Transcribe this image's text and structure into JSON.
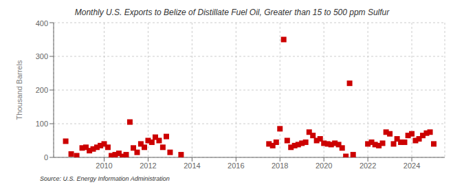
{
  "chart_data": {
    "type": "scatter",
    "title": "Monthly U.S. Exports to Belize of Distillate Fuel Oil, Greater than 15 to 500 ppm Sulfur",
    "ylabel": "Thousand Barrels",
    "annotation": "Source: U.S. Energy Information Administration",
    "color": "#cc0000",
    "marker": "square",
    "grid": true,
    "xlim": [
      2007.7,
      2025.5
    ],
    "ylim": [
      0,
      400
    ],
    "xticks": [
      2010,
      2012,
      2014,
      2016,
      2018,
      2020,
      2022,
      2024
    ],
    "yticks": [
      0,
      100,
      200,
      300,
      400
    ],
    "x": [
      2008.25,
      2008.5,
      2008.75,
      2009.0,
      2009.17,
      2009.33,
      2009.5,
      2009.67,
      2009.83,
      2010.0,
      2010.17,
      2010.33,
      2010.5,
      2010.67,
      2010.83,
      2011.0,
      2011.17,
      2011.33,
      2011.5,
      2011.67,
      2011.83,
      2012.0,
      2012.17,
      2012.33,
      2012.5,
      2012.67,
      2012.83,
      2013.0,
      2013.5,
      2017.5,
      2017.67,
      2017.83,
      2018.0,
      2018.17,
      2018.33,
      2018.5,
      2018.67,
      2018.83,
      2019.0,
      2019.17,
      2019.33,
      2019.5,
      2019.67,
      2019.83,
      2020.0,
      2020.17,
      2020.33,
      2020.5,
      2020.67,
      2020.83,
      2021.0,
      2021.17,
      2021.33,
      2022.0,
      2022.17,
      2022.33,
      2022.5,
      2022.67,
      2022.83,
      2023.0,
      2023.17,
      2023.33,
      2023.5,
      2023.67,
      2023.83,
      2024.0,
      2024.17,
      2024.33,
      2024.5,
      2024.67,
      2024.83,
      2025.0
    ],
    "values": [
      48,
      10,
      5,
      28,
      30,
      20,
      25,
      30,
      35,
      40,
      30,
      5,
      8,
      12,
      3,
      8,
      105,
      28,
      15,
      40,
      30,
      50,
      45,
      60,
      50,
      30,
      62,
      15,
      8,
      40,
      35,
      45,
      85,
      350,
      50,
      30,
      35,
      38,
      42,
      45,
      75,
      65,
      50,
      55,
      42,
      40,
      38,
      42,
      38,
      28,
      3,
      220,
      8,
      40,
      45,
      38,
      35,
      42,
      75,
      70,
      40,
      55,
      45,
      45,
      65,
      70,
      50,
      55,
      65,
      72,
      75,
      40
    ]
  }
}
